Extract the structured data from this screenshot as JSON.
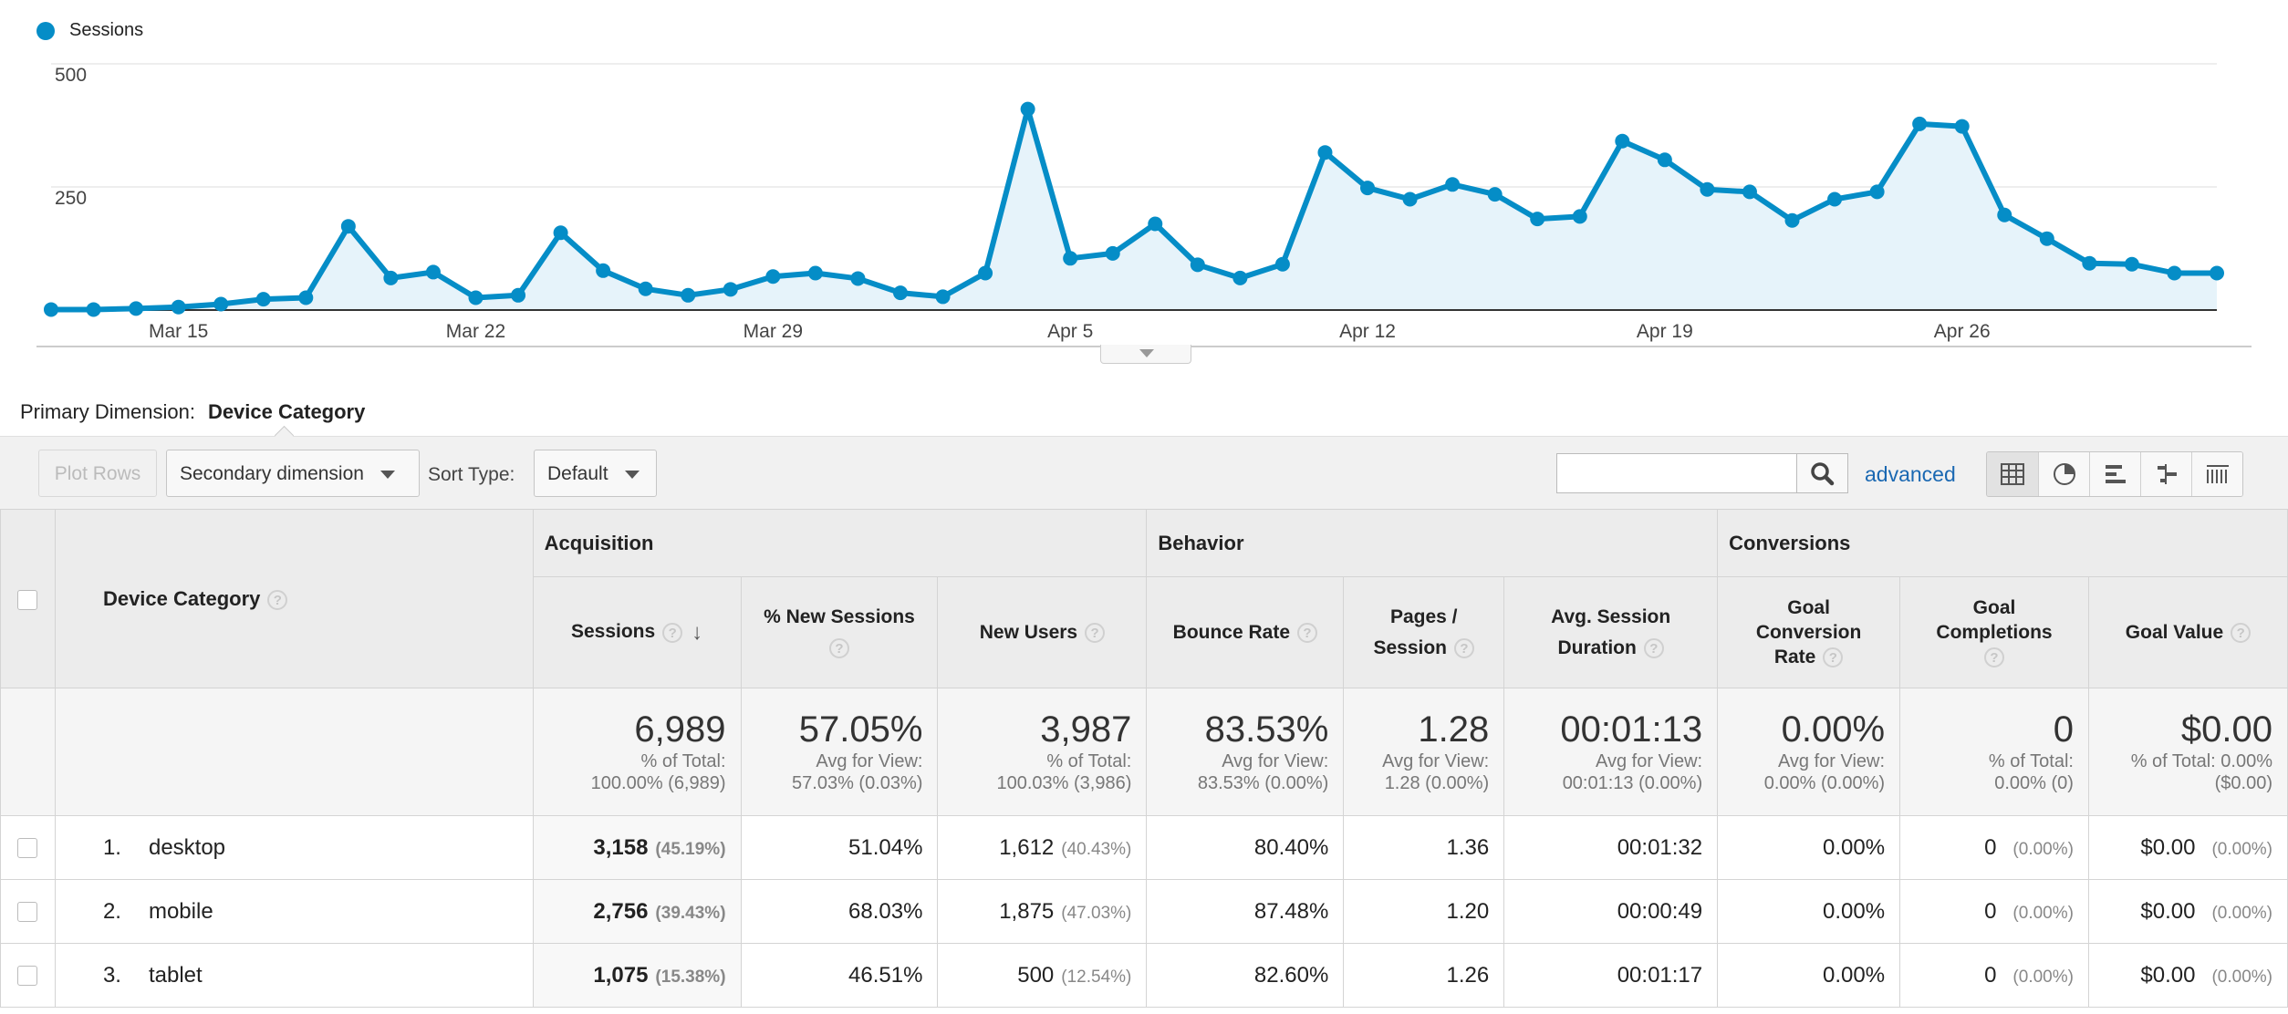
{
  "chart_data": {
    "type": "line",
    "x_ticks": [
      "Mar 15",
      "Mar 22",
      "Mar 29",
      "Apr 5",
      "Apr 12",
      "Apr 19",
      "Apr 26"
    ],
    "y_ticks": [
      "500",
      "250"
    ],
    "ylim": [
      0,
      500
    ],
    "series": [
      {
        "name": "Sessions",
        "color": "#058dc7",
        "values": [
          1,
          1,
          3,
          6,
          12,
          22,
          25,
          170,
          65,
          77,
          25,
          30,
          157,
          80,
          43,
          30,
          42,
          68,
          75,
          64,
          35,
          27,
          75,
          408,
          105,
          115,
          175,
          92,
          65,
          93,
          320,
          248,
          225,
          255,
          235,
          185,
          190,
          343,
          305,
          245,
          240,
          182,
          225,
          240,
          378,
          373,
          193,
          145,
          95,
          93,
          75,
          75
        ]
      }
    ]
  },
  "primary_dimension": {
    "label": "Primary Dimension:",
    "value": "Device Category"
  },
  "toolbar": {
    "plot_rows": "Plot Rows",
    "secondary_dimension": "Secondary dimension",
    "sort_type_label": "Sort Type:",
    "sort_type_value": "Default",
    "advanced": "advanced"
  },
  "table": {
    "dimension_header": "Device Category",
    "groups": [
      "Acquisition",
      "Behavior",
      "Conversions"
    ],
    "columns": {
      "sessions": "Sessions",
      "new_sessions_pct": "% New Sessions",
      "new_users": "New Users",
      "bounce_rate": "Bounce Rate",
      "pages_session_1": "Pages /",
      "pages_session_2": "Session",
      "avg_duration_1": "Avg. Session",
      "avg_duration_2": "Duration",
      "goal_conv_1": "Goal",
      "goal_conv_2": "Conversion",
      "goal_conv_3": "Rate",
      "goal_comp_1": "Goal",
      "goal_comp_2": "Completions",
      "goal_value": "Goal Value"
    },
    "totals": {
      "sessions": {
        "value": "6,989",
        "sub1": "% of Total:",
        "sub2": "100.00% (6,989)"
      },
      "new_sessions_pct": {
        "value": "57.05%",
        "sub1": "Avg for View:",
        "sub2": "57.03% (0.03%)"
      },
      "new_users": {
        "value": "3,987",
        "sub1": "% of Total:",
        "sub2": "100.03% (3,986)"
      },
      "bounce_rate": {
        "value": "83.53%",
        "sub1": "Avg for View:",
        "sub2": "83.53% (0.00%)"
      },
      "pages_session": {
        "value": "1.28",
        "sub1": "Avg for View:",
        "sub2": "1.28 (0.00%)"
      },
      "avg_duration": {
        "value": "00:01:13",
        "sub1": "Avg for View:",
        "sub2": "00:01:13 (0.00%)"
      },
      "goal_conv": {
        "value": "0.00%",
        "sub1": "Avg for View:",
        "sub2": "0.00% (0.00%)"
      },
      "goal_comp": {
        "value": "0",
        "sub1": "% of Total:",
        "sub2": "0.00% (0)"
      },
      "goal_value": {
        "value": "$0.00",
        "sub1": "% of Total: 0.00%",
        "sub2": "($0.00)"
      }
    },
    "rows": [
      {
        "index": "1.",
        "name": "desktop",
        "sessions": "3,158",
        "sessions_pct": "(45.19%)",
        "new_sessions_pct": "51.04%",
        "new_users": "1,612",
        "new_users_pct": "(40.43%)",
        "bounce_rate": "80.40%",
        "pages_session": "1.36",
        "avg_duration": "00:01:32",
        "goal_conv": "0.00%",
        "goal_comp": "0",
        "goal_comp_pct": "(0.00%)",
        "goal_value": "$0.00",
        "goal_value_pct": "(0.00%)"
      },
      {
        "index": "2.",
        "name": "mobile",
        "sessions": "2,756",
        "sessions_pct": "(39.43%)",
        "new_sessions_pct": "68.03%",
        "new_users": "1,875",
        "new_users_pct": "(47.03%)",
        "bounce_rate": "87.48%",
        "pages_session": "1.20",
        "avg_duration": "00:00:49",
        "goal_conv": "0.00%",
        "goal_comp": "0",
        "goal_comp_pct": "(0.00%)",
        "goal_value": "$0.00",
        "goal_value_pct": "(0.00%)"
      },
      {
        "index": "3.",
        "name": "tablet",
        "sessions": "1,075",
        "sessions_pct": "(15.38%)",
        "new_sessions_pct": "46.51%",
        "new_users": "500",
        "new_users_pct": "(12.54%)",
        "bounce_rate": "82.60%",
        "pages_session": "1.26",
        "avg_duration": "00:01:17",
        "goal_conv": "0.00%",
        "goal_comp": "0",
        "goal_comp_pct": "(0.00%)",
        "goal_value": "$0.00",
        "goal_value_pct": "(0.00%)"
      }
    ]
  }
}
